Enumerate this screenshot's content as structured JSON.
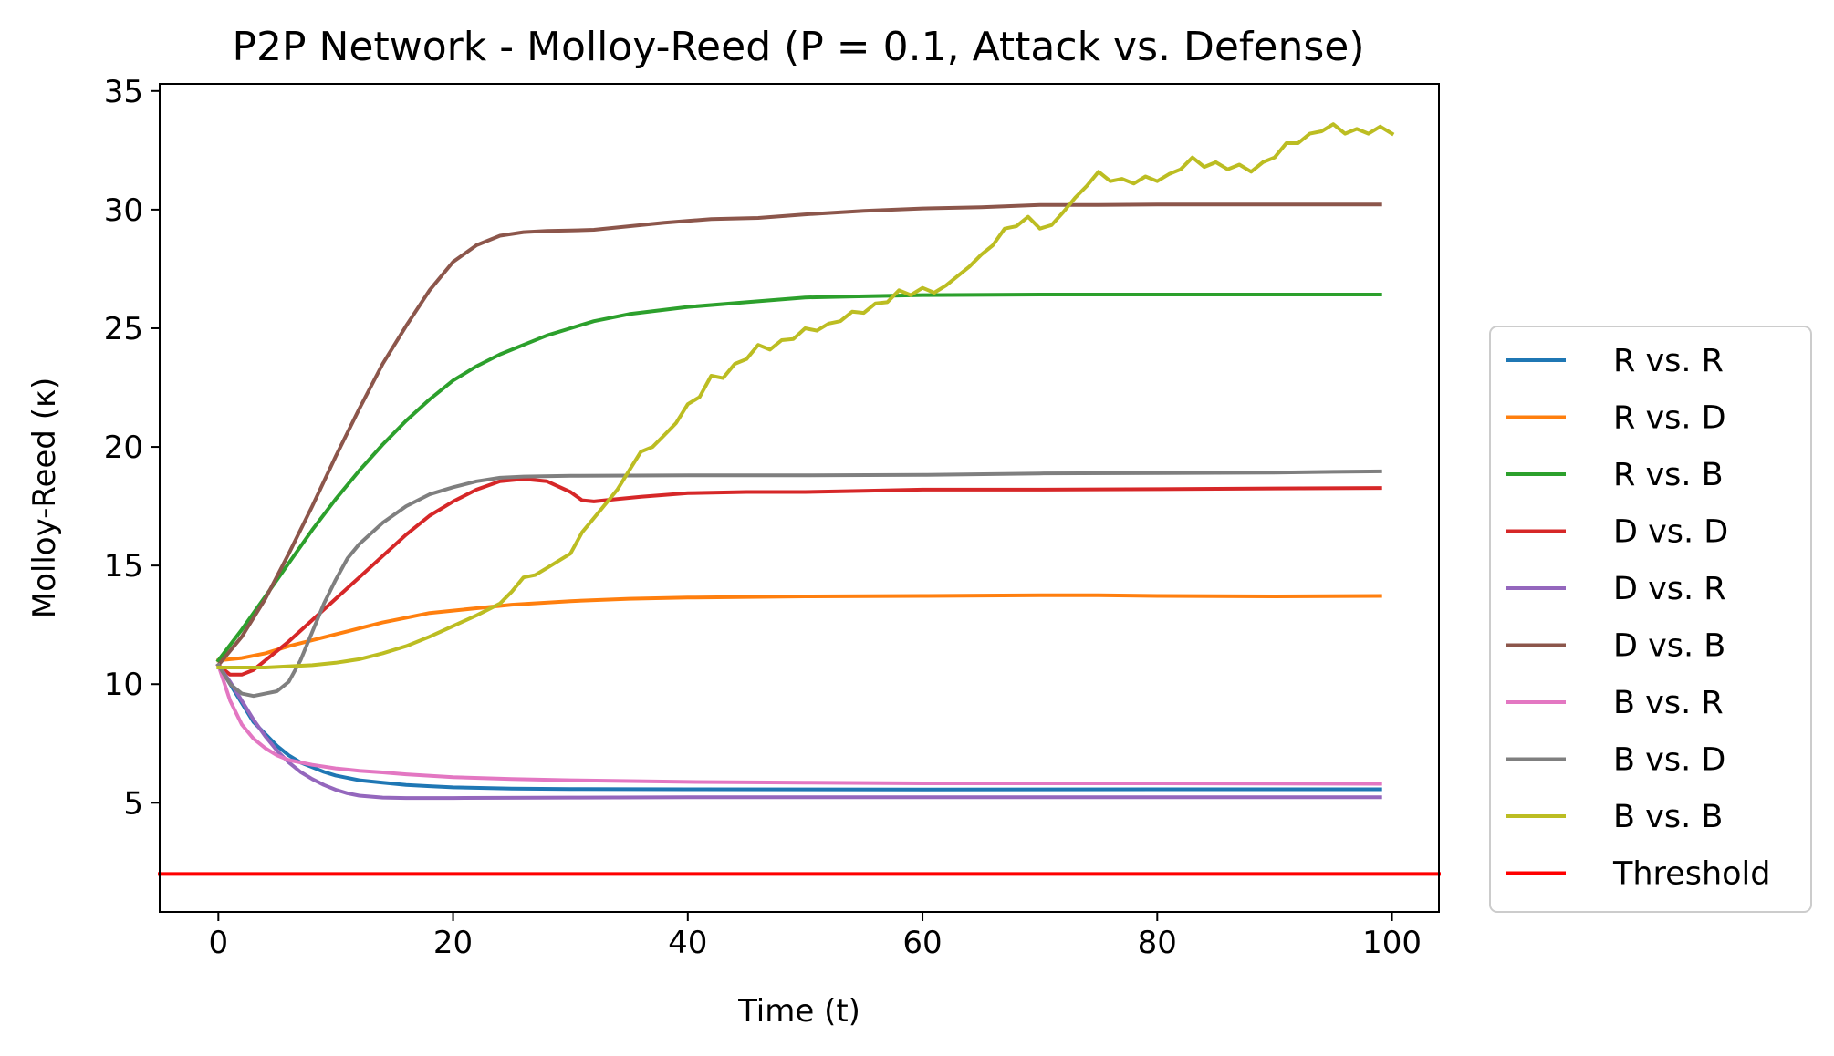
{
  "chart_data": {
    "type": "line",
    "title": "P2P Network - Molloy-Reed (P = 0.1, Attack vs. Defense)",
    "xlabel": "Time (t)",
    "ylabel": "Molloy-Reed (κ)",
    "xlim": [
      -5,
      104
    ],
    "ylim": [
      0.4,
      35.3
    ],
    "xticks": [
      0,
      20,
      40,
      60,
      80,
      100
    ],
    "yticks": [
      5,
      10,
      15,
      20,
      25,
      30,
      35
    ],
    "grid": false,
    "legend_position": "outside-right",
    "series": [
      {
        "name": "R vs. R",
        "color": "#1f77b4",
        "points": [
          [
            0,
            10.8
          ],
          [
            1,
            10.0
          ],
          [
            2,
            9.2
          ],
          [
            3,
            8.4
          ],
          [
            4,
            7.9
          ],
          [
            5,
            7.4
          ],
          [
            6,
            7.0
          ],
          [
            7,
            6.7
          ],
          [
            8,
            6.5
          ],
          [
            9,
            6.3
          ],
          [
            10,
            6.15
          ],
          [
            12,
            5.95
          ],
          [
            14,
            5.85
          ],
          [
            16,
            5.75
          ],
          [
            18,
            5.7
          ],
          [
            20,
            5.65
          ],
          [
            25,
            5.6
          ],
          [
            30,
            5.58
          ],
          [
            40,
            5.57
          ],
          [
            60,
            5.56
          ],
          [
            80,
            5.57
          ],
          [
            99,
            5.57
          ]
        ]
      },
      {
        "name": "R vs. D",
        "color": "#ff7f0e",
        "points": [
          [
            0,
            11.0
          ],
          [
            2,
            11.1
          ],
          [
            4,
            11.3
          ],
          [
            6,
            11.6
          ],
          [
            8,
            11.85
          ],
          [
            10,
            12.1
          ],
          [
            12,
            12.35
          ],
          [
            14,
            12.6
          ],
          [
            16,
            12.8
          ],
          [
            18,
            13.0
          ],
          [
            20,
            13.1
          ],
          [
            22,
            13.2
          ],
          [
            25,
            13.35
          ],
          [
            30,
            13.5
          ],
          [
            35,
            13.6
          ],
          [
            40,
            13.65
          ],
          [
            50,
            13.7
          ],
          [
            60,
            13.72
          ],
          [
            70,
            13.75
          ],
          [
            75,
            13.75
          ],
          [
            80,
            13.72
          ],
          [
            90,
            13.7
          ],
          [
            99,
            13.72
          ]
        ]
      },
      {
        "name": "R vs. B",
        "color": "#2ca02c",
        "points": [
          [
            0,
            11.0
          ],
          [
            2,
            12.3
          ],
          [
            4,
            13.7
          ],
          [
            6,
            15.1
          ],
          [
            8,
            16.5
          ],
          [
            10,
            17.8
          ],
          [
            12,
            19.0
          ],
          [
            14,
            20.1
          ],
          [
            16,
            21.1
          ],
          [
            18,
            22.0
          ],
          [
            20,
            22.8
          ],
          [
            22,
            23.4
          ],
          [
            24,
            23.9
          ],
          [
            26,
            24.3
          ],
          [
            28,
            24.7
          ],
          [
            30,
            25.0
          ],
          [
            32,
            25.3
          ],
          [
            35,
            25.6
          ],
          [
            40,
            25.9
          ],
          [
            45,
            26.1
          ],
          [
            50,
            26.3
          ],
          [
            55,
            26.35
          ],
          [
            60,
            26.4
          ],
          [
            70,
            26.42
          ],
          [
            80,
            26.42
          ],
          [
            90,
            26.42
          ],
          [
            99,
            26.42
          ]
        ]
      },
      {
        "name": "D vs. D",
        "color": "#d62728",
        "points": [
          [
            0,
            10.8
          ],
          [
            1,
            10.4
          ],
          [
            2,
            10.4
          ],
          [
            3,
            10.6
          ],
          [
            4,
            11.0
          ],
          [
            6,
            11.8
          ],
          [
            8,
            12.7
          ],
          [
            10,
            13.6
          ],
          [
            12,
            14.5
          ],
          [
            14,
            15.4
          ],
          [
            16,
            16.3
          ],
          [
            18,
            17.1
          ],
          [
            20,
            17.7
          ],
          [
            22,
            18.2
          ],
          [
            24,
            18.55
          ],
          [
            26,
            18.65
          ],
          [
            28,
            18.55
          ],
          [
            30,
            18.1
          ],
          [
            31,
            17.75
          ],
          [
            32,
            17.7
          ],
          [
            34,
            17.8
          ],
          [
            36,
            17.9
          ],
          [
            40,
            18.05
          ],
          [
            45,
            18.1
          ],
          [
            50,
            18.1
          ],
          [
            55,
            18.15
          ],
          [
            60,
            18.2
          ],
          [
            70,
            18.2
          ],
          [
            80,
            18.22
          ],
          [
            90,
            18.25
          ],
          [
            99,
            18.27
          ]
        ]
      },
      {
        "name": "D vs. R",
        "color": "#9467bd",
        "points": [
          [
            0,
            10.8
          ],
          [
            1,
            10.1
          ],
          [
            2,
            9.3
          ],
          [
            3,
            8.5
          ],
          [
            4,
            7.8
          ],
          [
            5,
            7.2
          ],
          [
            6,
            6.7
          ],
          [
            7,
            6.3
          ],
          [
            8,
            6.0
          ],
          [
            9,
            5.75
          ],
          [
            10,
            5.55
          ],
          [
            11,
            5.4
          ],
          [
            12,
            5.3
          ],
          [
            14,
            5.22
          ],
          [
            16,
            5.2
          ],
          [
            20,
            5.2
          ],
          [
            30,
            5.22
          ],
          [
            40,
            5.23
          ],
          [
            60,
            5.23
          ],
          [
            80,
            5.23
          ],
          [
            99,
            5.23
          ]
        ]
      },
      {
        "name": "D vs. B",
        "color": "#8c564b",
        "points": [
          [
            0,
            10.8
          ],
          [
            2,
            12.0
          ],
          [
            4,
            13.6
          ],
          [
            6,
            15.5
          ],
          [
            8,
            17.5
          ],
          [
            10,
            19.6
          ],
          [
            12,
            21.6
          ],
          [
            14,
            23.5
          ],
          [
            16,
            25.1
          ],
          [
            18,
            26.6
          ],
          [
            20,
            27.8
          ],
          [
            22,
            28.5
          ],
          [
            24,
            28.9
          ],
          [
            26,
            29.05
          ],
          [
            28,
            29.1
          ],
          [
            30,
            29.12
          ],
          [
            32,
            29.15
          ],
          [
            35,
            29.3
          ],
          [
            38,
            29.45
          ],
          [
            42,
            29.6
          ],
          [
            46,
            29.65
          ],
          [
            50,
            29.8
          ],
          [
            55,
            29.95
          ],
          [
            60,
            30.05
          ],
          [
            65,
            30.1
          ],
          [
            70,
            30.2
          ],
          [
            75,
            30.2
          ],
          [
            80,
            30.22
          ],
          [
            85,
            30.22
          ],
          [
            90,
            30.22
          ],
          [
            95,
            30.22
          ],
          [
            99,
            30.22
          ]
        ]
      },
      {
        "name": "B vs. R",
        "color": "#e377c2",
        "points": [
          [
            0,
            10.8
          ],
          [
            1,
            9.3
          ],
          [
            2,
            8.3
          ],
          [
            3,
            7.7
          ],
          [
            4,
            7.3
          ],
          [
            5,
            7.0
          ],
          [
            6,
            6.8
          ],
          [
            8,
            6.6
          ],
          [
            10,
            6.45
          ],
          [
            12,
            6.35
          ],
          [
            14,
            6.28
          ],
          [
            16,
            6.2
          ],
          [
            20,
            6.08
          ],
          [
            25,
            6.0
          ],
          [
            30,
            5.95
          ],
          [
            40,
            5.88
          ],
          [
            50,
            5.85
          ],
          [
            60,
            5.82
          ],
          [
            70,
            5.82
          ],
          [
            80,
            5.82
          ],
          [
            99,
            5.8
          ]
        ]
      },
      {
        "name": "B vs. D",
        "color": "#7f7f7f",
        "points": [
          [
            0,
            10.8
          ],
          [
            1,
            10.0
          ],
          [
            2,
            9.6
          ],
          [
            3,
            9.5
          ],
          [
            4,
            9.6
          ],
          [
            5,
            9.7
          ],
          [
            6,
            10.1
          ],
          [
            7,
            11.0
          ],
          [
            8,
            12.2
          ],
          [
            9,
            13.4
          ],
          [
            10,
            14.4
          ],
          [
            11,
            15.3
          ],
          [
            12,
            15.9
          ],
          [
            14,
            16.8
          ],
          [
            16,
            17.5
          ],
          [
            18,
            18.0
          ],
          [
            20,
            18.3
          ],
          [
            22,
            18.55
          ],
          [
            24,
            18.7
          ],
          [
            26,
            18.75
          ],
          [
            30,
            18.78
          ],
          [
            40,
            18.8
          ],
          [
            50,
            18.8
          ],
          [
            60,
            18.82
          ],
          [
            70,
            18.88
          ],
          [
            80,
            18.9
          ],
          [
            90,
            18.92
          ],
          [
            95,
            18.95
          ],
          [
            99,
            18.97
          ]
        ]
      },
      {
        "name": "B vs. B",
        "color": "#bcbd22",
        "points": [
          [
            0,
            10.7
          ],
          [
            4,
            10.7
          ],
          [
            8,
            10.8
          ],
          [
            10,
            10.9
          ],
          [
            12,
            11.05
          ],
          [
            14,
            11.3
          ],
          [
            16,
            11.6
          ],
          [
            18,
            12.0
          ],
          [
            20,
            12.45
          ],
          [
            22,
            12.9
          ],
          [
            24,
            13.4
          ],
          [
            25,
            13.9
          ],
          [
            26,
            14.5
          ],
          [
            27,
            14.6
          ],
          [
            28,
            14.9
          ],
          [
            30,
            15.5
          ],
          [
            31,
            16.4
          ],
          [
            32,
            17.0
          ],
          [
            33,
            17.6
          ],
          [
            34,
            18.2
          ],
          [
            35,
            19.0
          ],
          [
            36,
            19.8
          ],
          [
            37,
            20.0
          ],
          [
            38,
            20.5
          ],
          [
            39,
            21.0
          ],
          [
            40,
            21.8
          ],
          [
            41,
            22.1
          ],
          [
            42,
            23.0
          ],
          [
            43,
            22.9
          ],
          [
            44,
            23.5
          ],
          [
            45,
            23.7
          ],
          [
            46,
            24.3
          ],
          [
            47,
            24.1
          ],
          [
            48,
            24.5
          ],
          [
            49,
            24.55
          ],
          [
            50,
            25.0
          ],
          [
            51,
            24.9
          ],
          [
            52,
            25.2
          ],
          [
            53,
            25.3
          ],
          [
            54,
            25.7
          ],
          [
            55,
            25.65
          ],
          [
            56,
            26.05
          ],
          [
            57,
            26.1
          ],
          [
            58,
            26.6
          ],
          [
            59,
            26.4
          ],
          [
            60,
            26.7
          ],
          [
            61,
            26.5
          ],
          [
            62,
            26.8
          ],
          [
            63,
            27.2
          ],
          [
            64,
            27.6
          ],
          [
            65,
            28.1
          ],
          [
            66,
            28.5
          ],
          [
            67,
            29.2
          ],
          [
            68,
            29.3
          ],
          [
            69,
            29.7
          ],
          [
            70,
            29.2
          ],
          [
            71,
            29.35
          ],
          [
            72,
            29.9
          ],
          [
            73,
            30.5
          ],
          [
            74,
            31.0
          ],
          [
            75,
            31.6
          ],
          [
            76,
            31.2
          ],
          [
            77,
            31.3
          ],
          [
            78,
            31.1
          ],
          [
            79,
            31.4
          ],
          [
            80,
            31.2
          ],
          [
            81,
            31.5
          ],
          [
            82,
            31.7
          ],
          [
            83,
            32.2
          ],
          [
            84,
            31.8
          ],
          [
            85,
            32.0
          ],
          [
            86,
            31.7
          ],
          [
            87,
            31.9
          ],
          [
            88,
            31.6
          ],
          [
            89,
            32.0
          ],
          [
            90,
            32.2
          ],
          [
            91,
            32.8
          ],
          [
            92,
            32.8
          ],
          [
            93,
            33.2
          ],
          [
            94,
            33.3
          ],
          [
            95,
            33.6
          ],
          [
            96,
            33.2
          ],
          [
            97,
            33.4
          ],
          [
            98,
            33.2
          ],
          [
            99,
            33.5
          ],
          [
            100,
            33.2
          ]
        ]
      },
      {
        "name": "Threshold",
        "color": "#ff0000",
        "style": "full-width",
        "points": [
          [
            -5,
            2.0
          ],
          [
            104,
            2.0
          ]
        ]
      }
    ]
  }
}
